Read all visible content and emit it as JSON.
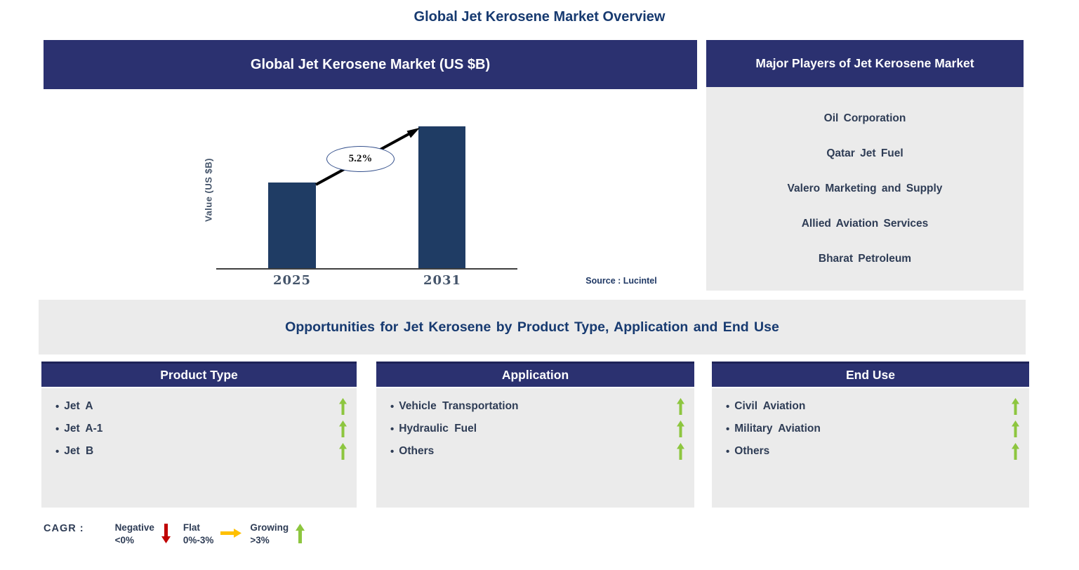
{
  "page_title": "Global Jet Kerosene Market Overview",
  "ui": {
    "bullet": "•"
  },
  "chart_panel": {
    "header": "Global Jet Kerosene Market (US $B)",
    "source": "Source : Lucintel"
  },
  "chart_data": {
    "type": "bar",
    "title": "Global Jet Kerosene Market (US $B)",
    "categories": [
      "2025",
      "2031"
    ],
    "values_relative": [
      123,
      203
    ],
    "xlabel": "",
    "ylabel": "Value (US $B)",
    "axis_values_labeled": false,
    "annotation": "5.2%",
    "annotation_meaning": "CAGR growth arrow from 2025 bar to 2031 bar"
  },
  "major_players": {
    "header": "Major Players of Jet Kerosene Market",
    "items": [
      "Oil Corporation",
      "Qatar Jet Fuel",
      "Valero Marketing and Supply",
      "Allied Aviation Services",
      "Bharat Petroleum"
    ]
  },
  "opportunities_banner": "Opportunities for Jet Kerosene by Product Type, Application and End Use",
  "segments": [
    {
      "header": "Product Type",
      "items": [
        "Jet A",
        "Jet A-1",
        "Jet B"
      ],
      "trends": [
        "growing",
        "growing",
        "growing"
      ]
    },
    {
      "header": "Application",
      "items": [
        "Vehicle Transportation",
        "Hydraulic Fuel",
        "Others"
      ],
      "trends": [
        "growing",
        "growing",
        "growing"
      ]
    },
    {
      "header": "End Use",
      "items": [
        "Civil Aviation",
        "Military Aviation",
        "Others"
      ],
      "trends": [
        "growing",
        "growing",
        "growing"
      ]
    }
  ],
  "legend": {
    "label": "CAGR :",
    "items": [
      {
        "name": "Negative",
        "range": "<0%",
        "direction": "down",
        "color": "#C00000"
      },
      {
        "name": "Flat",
        "range": "0%-3%",
        "direction": "right",
        "color": "#FFC000"
      },
      {
        "name": "Growing",
        "range": ">3%",
        "direction": "up",
        "color": "#8DC63F"
      }
    ]
  },
  "colors": {
    "navy_header": "#2B3170",
    "bar_navy": "#1F3C64",
    "panel_gray": "#EBEBEB",
    "title_blue": "#173A70",
    "text_slate": "#2E3C55",
    "growing_green": "#8DC63F",
    "negative_red": "#C00000",
    "flat_yellow": "#FFC000"
  }
}
